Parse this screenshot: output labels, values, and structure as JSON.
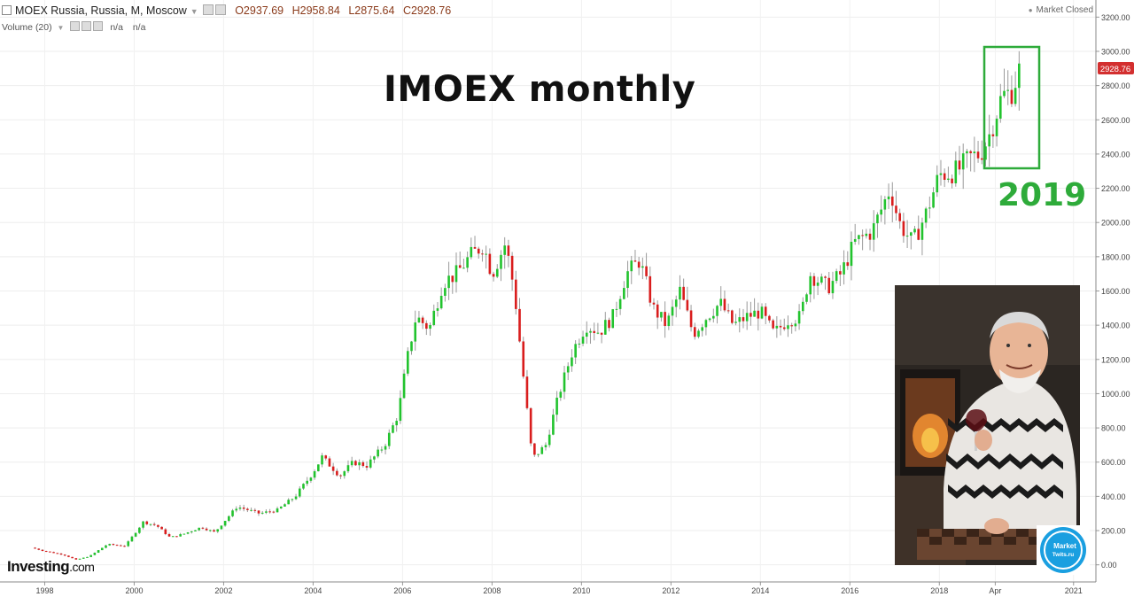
{
  "header": {
    "instrument": "MOEX Russia, Russia, M, Moscow",
    "open": "O2937.69",
    "high": "H2958.84",
    "low": "L2875.64",
    "close": "C2928.76"
  },
  "volume": {
    "label": "Volume (20)",
    "value1": "n/a",
    "value2": "n/a"
  },
  "status": "Market Closed",
  "annotation": {
    "title": "IMOEX monthly",
    "highlight_year": "2019",
    "highlight_color": "#2eab3a"
  },
  "branding": {
    "logo_main": "Investing",
    "logo_suffix": ".com",
    "badge_line1": "Market",
    "badge_line2": "Twits.ru"
  },
  "colors": {
    "up": "#22c32e",
    "down": "#d91d1d",
    "price_tag": "#d32f2f"
  },
  "chart_data": {
    "type": "candlestick",
    "interval": "monthly",
    "last_price_label": "2928.76",
    "last_price": 2928.76,
    "ylim": [
      -100,
      3300
    ],
    "y_ticks": [
      0,
      200,
      400,
      600,
      800,
      1000,
      1200,
      1400,
      1600,
      1800,
      2000,
      2200,
      2400,
      2600,
      2800,
      3000,
      3200
    ],
    "y_tick_labels": [
      "0.00",
      "200.00",
      "400.00",
      "600.00",
      "800.00",
      "1000.00",
      "1200.00",
      "1400.00",
      "1600.00",
      "1800.00",
      "2000.00",
      "2200.00",
      "2400.00",
      "2600.00",
      "2800.00",
      "3000.00",
      "3200.00"
    ],
    "x_ticks": [
      1998,
      2000,
      2002,
      2004,
      2006,
      2008,
      2010,
      2012,
      2014,
      2016,
      2018,
      2019.25,
      2021
    ],
    "x_tick_labels": [
      "1998",
      "2000",
      "2002",
      "2004",
      "2006",
      "2008",
      "2010",
      "2012",
      "2014",
      "2016",
      "2018",
      "Apr",
      "2021"
    ],
    "xlim": [
      1997.0,
      2021.5
    ],
    "close_path": [
      [
        1997.7,
        100
      ],
      [
        1998.0,
        80
      ],
      [
        1998.4,
        60
      ],
      [
        1998.7,
        30
      ],
      [
        1999.0,
        50
      ],
      [
        1999.4,
        120
      ],
      [
        1999.8,
        110
      ],
      [
        2000.2,
        250
      ],
      [
        2000.5,
        230
      ],
      [
        2000.8,
        160
      ],
      [
        2001.1,
        180
      ],
      [
        2001.5,
        220
      ],
      [
        2001.8,
        190
      ],
      [
        2002.3,
        340
      ],
      [
        2002.8,
        300
      ],
      [
        2003.2,
        320
      ],
      [
        2003.6,
        400
      ],
      [
        2004.0,
        540
      ],
      [
        2004.2,
        630
      ],
      [
        2004.6,
        520
      ],
      [
        2004.9,
        600
      ],
      [
        2005.2,
        580
      ],
      [
        2005.6,
        700
      ],
      [
        2005.9,
        880
      ],
      [
        2006.1,
        1200
      ],
      [
        2006.3,
        1450
      ],
      [
        2006.6,
        1380
      ],
      [
        2006.9,
        1650
      ],
      [
        2007.2,
        1700
      ],
      [
        2007.5,
        1800
      ],
      [
        2007.8,
        1870
      ],
      [
        2008.0,
        1700
      ],
      [
        2008.3,
        1880
      ],
      [
        2008.5,
        1600
      ],
      [
        2008.7,
        1100
      ],
      [
        2008.9,
        620
      ],
      [
        2009.2,
        700
      ],
      [
        2009.5,
        1000
      ],
      [
        2009.8,
        1250
      ],
      [
        2010.1,
        1400
      ],
      [
        2010.4,
        1360
      ],
      [
        2010.7,
        1450
      ],
      [
        2011.0,
        1700
      ],
      [
        2011.3,
        1780
      ],
      [
        2011.6,
        1500
      ],
      [
        2011.9,
        1400
      ],
      [
        2012.2,
        1600
      ],
      [
        2012.5,
        1350
      ],
      [
        2012.8,
        1450
      ],
      [
        2013.1,
        1530
      ],
      [
        2013.4,
        1400
      ],
      [
        2013.7,
        1450
      ],
      [
        2014.0,
        1480
      ],
      [
        2014.3,
        1350
      ],
      [
        2014.6,
        1430
      ],
      [
        2014.9,
        1450
      ],
      [
        2015.1,
        1700
      ],
      [
        2015.5,
        1620
      ],
      [
        2015.8,
        1700
      ],
      [
        2016.1,
        1880
      ],
      [
        2016.5,
        1950
      ],
      [
        2016.9,
        2200
      ],
      [
        2017.1,
        2000
      ],
      [
        2017.4,
        1880
      ],
      [
        2017.7,
        2050
      ],
      [
        2018.0,
        2280
      ],
      [
        2018.4,
        2300
      ],
      [
        2018.7,
        2380
      ],
      [
        2018.9,
        2400
      ],
      [
        2019.1,
        2500
      ],
      [
        2019.4,
        2740
      ],
      [
        2019.6,
        2760
      ],
      [
        2019.85,
        2928.76
      ]
    ]
  }
}
